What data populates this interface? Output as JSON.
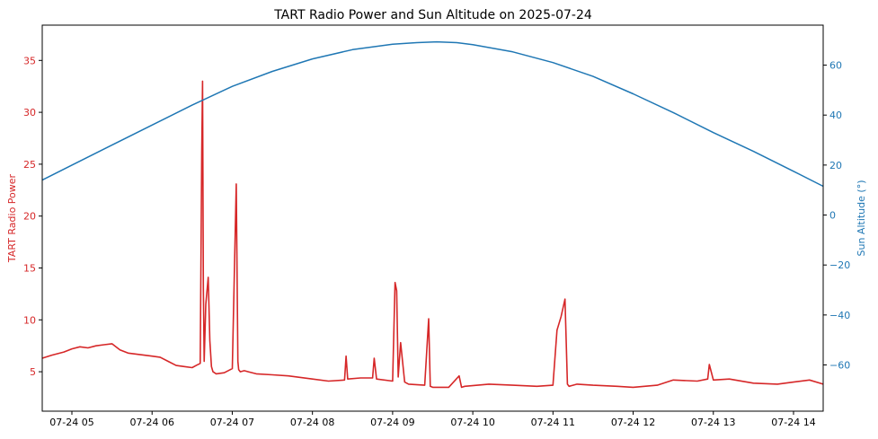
{
  "chart_data": {
    "type": "line",
    "title": "TART Radio Power and Sun Altitude on 2025-07-24",
    "xlabel": "",
    "x_tick_labels": [
      "07-24 05",
      "07-24 06",
      "07-24 07",
      "07-24 08",
      "07-24 09",
      "07-24 10",
      "07-24 11",
      "07-24 12",
      "07-24 13",
      "07-24 14"
    ],
    "x_tick_hours": [
      5,
      6,
      7,
      8,
      9,
      10,
      11,
      12,
      13,
      14
    ],
    "xlim_hours": [
      4.63,
      14.37
    ],
    "y_left": {
      "label": "TART Radio Power",
      "color": "#d62728",
      "ylim": [
        1.2,
        38.4
      ],
      "ticks": [
        5,
        10,
        15,
        20,
        25,
        30,
        35
      ]
    },
    "y_right": {
      "label": "Sun Altitude (°)",
      "color": "#1f77b4",
      "ylim": [
        -78.5,
        76.0
      ],
      "ticks": [
        -60,
        -40,
        -20,
        0,
        20,
        40,
        60
      ],
      "tick_labels": [
        "−60",
        "−40",
        "−20",
        "0",
        "20",
        "40",
        "60"
      ]
    },
    "series": [
      {
        "name": "TART Radio Power",
        "axis": "left",
        "color": "#d62728",
        "x_hours": [
          4.63,
          4.75,
          4.9,
          5.0,
          5.1,
          5.2,
          5.3,
          5.4,
          5.5,
          5.6,
          5.7,
          5.8,
          5.9,
          6.0,
          6.1,
          6.2,
          6.3,
          6.4,
          6.5,
          6.55,
          6.6,
          6.62,
          6.63,
          6.64,
          6.65,
          6.67,
          6.7,
          6.72,
          6.74,
          6.76,
          6.8,
          6.9,
          7.0,
          7.05,
          7.07,
          7.08,
          7.1,
          7.15,
          7.2,
          7.3,
          7.5,
          7.7,
          8.0,
          8.2,
          8.4,
          8.42,
          8.44,
          8.6,
          8.75,
          8.77,
          8.8,
          9.0,
          9.03,
          9.05,
          9.07,
          9.1,
          9.15,
          9.2,
          9.4,
          9.45,
          9.47,
          9.5,
          9.7,
          9.83,
          9.86,
          9.9,
          10.2,
          10.5,
          10.8,
          11.0,
          11.05,
          11.1,
          11.15,
          11.18,
          11.2,
          11.25,
          11.3,
          11.5,
          11.8,
          12.0,
          12.3,
          12.5,
          12.8,
          12.93,
          12.95,
          13.0,
          13.2,
          13.5,
          13.8,
          14.0,
          14.2,
          14.37
        ],
        "values": [
          6.3,
          6.6,
          6.9,
          7.2,
          7.4,
          7.3,
          7.5,
          7.6,
          7.7,
          7.1,
          6.8,
          6.7,
          6.6,
          6.5,
          6.4,
          6.0,
          5.6,
          5.5,
          5.4,
          5.6,
          5.8,
          26.2,
          33.0,
          13.0,
          6.0,
          11.5,
          14.1,
          8.0,
          5.5,
          5.0,
          4.8,
          4.9,
          5.3,
          23.1,
          6.0,
          5.2,
          5.0,
          5.1,
          5.0,
          4.8,
          4.7,
          4.6,
          4.3,
          4.1,
          4.2,
          6.5,
          4.3,
          4.4,
          4.4,
          6.3,
          4.3,
          4.1,
          13.6,
          12.8,
          4.5,
          7.8,
          4.0,
          3.8,
          3.7,
          10.1,
          3.6,
          3.5,
          3.5,
          4.6,
          3.5,
          3.6,
          3.8,
          3.7,
          3.6,
          3.7,
          9.0,
          10.3,
          12.0,
          3.8,
          3.6,
          3.7,
          3.8,
          3.7,
          3.6,
          3.5,
          3.7,
          4.2,
          4.1,
          4.3,
          5.7,
          4.2,
          4.3,
          3.9,
          3.8,
          4.0,
          4.2,
          3.8
        ]
      },
      {
        "name": "Sun Altitude",
        "axis": "right",
        "color": "#1f77b4",
        "x_hours": [
          4.63,
          5.0,
          5.5,
          6.0,
          6.5,
          7.0,
          7.5,
          8.0,
          8.5,
          9.0,
          9.3,
          9.55,
          9.8,
          10.0,
          10.5,
          11.0,
          11.5,
          12.0,
          12.5,
          13.0,
          13.5,
          14.0,
          14.37
        ],
        "values": [
          14.0,
          20.0,
          28.0,
          36.0,
          44.0,
          51.5,
          57.5,
          62.5,
          66.2,
          68.4,
          69.0,
          69.3,
          69.0,
          68.2,
          65.3,
          61.0,
          55.5,
          48.5,
          41.0,
          33.0,
          25.5,
          17.5,
          11.5
        ]
      }
    ]
  }
}
